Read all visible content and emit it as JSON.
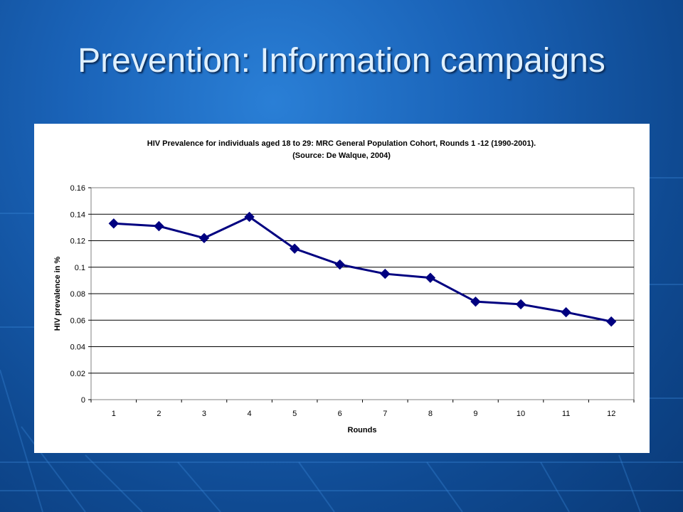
{
  "slide": {
    "title": "Prevention: Information campaigns"
  },
  "chart_data": {
    "type": "line",
    "title_line1": "HIV Prevalence for individuals aged 18 to 29: MRC General Population Cohort, Rounds 1 -12 (1990-2001).",
    "title_line2": "(Source: De Walque, 2004)",
    "xlabel": "Rounds",
    "ylabel": "HIV prevalence in %",
    "categories": [
      "1",
      "2",
      "3",
      "4",
      "5",
      "6",
      "7",
      "8",
      "9",
      "10",
      "11",
      "12"
    ],
    "y_ticks": [
      "0",
      "0.02",
      "0.04",
      "0.06",
      "0.08",
      "0.1",
      "0.12",
      "0.14",
      "0.16"
    ],
    "ylim": [
      0,
      0.16
    ],
    "grid": true,
    "series": [
      {
        "values": [
          0.133,
          0.131,
          0.122,
          0.138,
          0.114,
          0.102,
          0.095,
          0.092,
          0.074,
          0.072,
          0.066,
          0.059
        ],
        "color": "#000080",
        "marker": "diamond"
      }
    ]
  }
}
